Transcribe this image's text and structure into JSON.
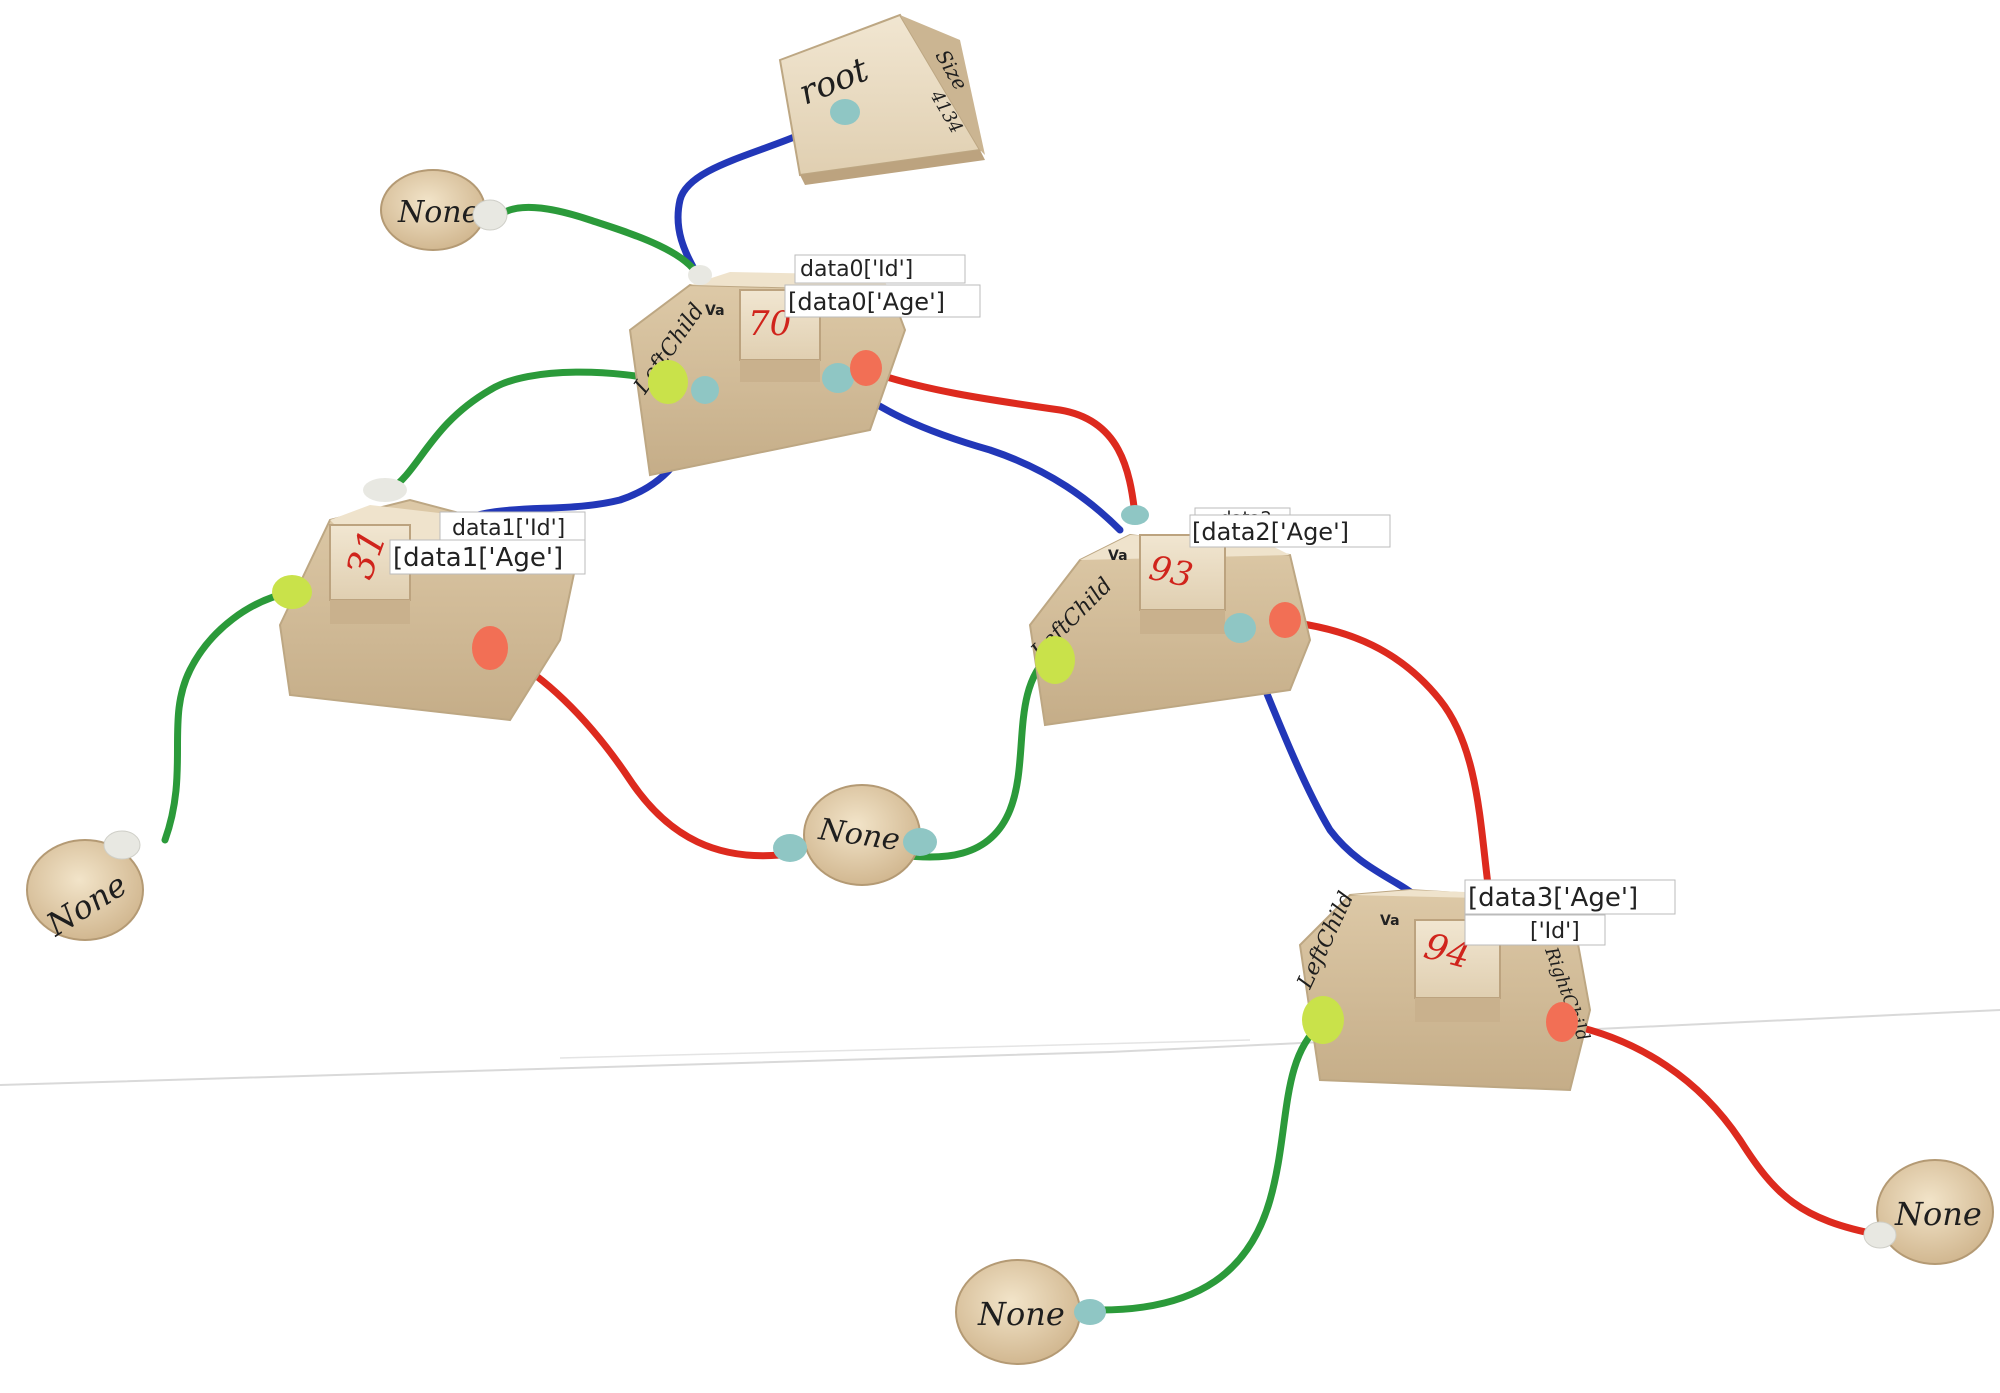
{
  "colors": {
    "background": "#ffffff",
    "wood_light": "#eadcc2",
    "wood_mid": "#d8c6a5",
    "wood_dark": "#b9a27e",
    "cord_blue": "#2237b8",
    "cord_green": "#2b9a3a",
    "cord_red": "#dd2a1e",
    "knot_lime": "#c9e24a",
    "knot_teal": "#8fc6c4",
    "knot_coral": "#f26f55",
    "knot_white": "#e8e8e2",
    "value_ink": "#d0241c",
    "ink": "#1e1e1e"
  },
  "root": {
    "label": "root",
    "size_label": "Size",
    "size_value": "4134"
  },
  "none_label": "None",
  "side_labels": {
    "left": "LeftChild",
    "right": "RightChild",
    "value": "Va"
  },
  "nodes": [
    {
      "value": "70",
      "label_id": "data0['Id']",
      "label_age": "[data0['Age']"
    },
    {
      "value": "31",
      "label_id": "data1['Id']",
      "label_age": "[data1['Age']"
    },
    {
      "value": "93",
      "label_id": "data2",
      "label_age": "[data2['Age']"
    },
    {
      "value": "94",
      "label_id": "['Id']",
      "label_age": "[data3['Age']"
    }
  ]
}
